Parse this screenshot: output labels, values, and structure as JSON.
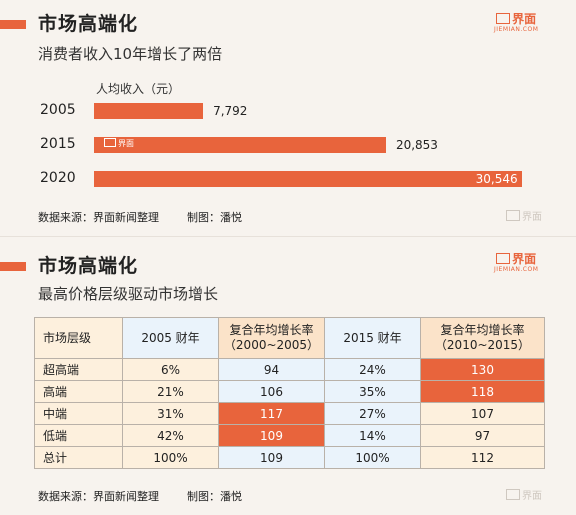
{
  "section1": {
    "title": "市场高端化",
    "subtitle": "消费者收入10年增长了两倍",
    "logo": {
      "mark": "界面",
      "sub": "JIEMIAN.COM"
    },
    "source": "数据来源：界面新闻整理",
    "credit": "制图：潘悦",
    "faint_logo": "界面"
  },
  "section2": {
    "title": "市场高端化",
    "subtitle": "最高价格层级驱动市场增长",
    "logo": {
      "mark": "界面",
      "sub": "JIEMIAN.COM"
    },
    "source": "数据来源：界面新闻整理",
    "credit": "制图：潘悦",
    "faint_logo": "界面"
  },
  "bar_watermark": "界面",
  "colors": {
    "accent": "#e8643c",
    "row_odd": "#fdf0dd",
    "row_even": "#eaf3fb"
  },
  "chart_data": [
    {
      "type": "bar",
      "orientation": "horizontal",
      "title": "市场高端化",
      "subtitle": "消费者收入10年增长了两倍",
      "unit_label": "人均收入（元）",
      "categories": [
        "2005",
        "2015",
        "2020"
      ],
      "values": [
        7792,
        20853,
        30546
      ],
      "value_labels": [
        "7,792",
        "20,853",
        "30,546"
      ],
      "xlim": [
        0,
        32000
      ],
      "grid": false
    },
    {
      "type": "table",
      "title": "市场高端化",
      "subtitle": "最高价格层级驱动市场增长",
      "headers": [
        [
          "市场层级"
        ],
        [
          "2005 财年"
        ],
        [
          "复合年均增长率",
          "（2000~2005）"
        ],
        [
          "2015 财年"
        ],
        [
          "复合年均增长率",
          "（2010~2015）"
        ]
      ],
      "rows": [
        [
          "超高端",
          "6%",
          "94",
          "24%",
          "130"
        ],
        [
          "高端",
          "21%",
          "106",
          "35%",
          "118"
        ],
        [
          "中端",
          "31%",
          "117",
          "27%",
          "107"
        ],
        [
          "低端",
          "42%",
          "109",
          "14%",
          "97"
        ],
        [
          "总计",
          "100%",
          "109",
          "100%",
          "112"
        ]
      ]
    }
  ]
}
